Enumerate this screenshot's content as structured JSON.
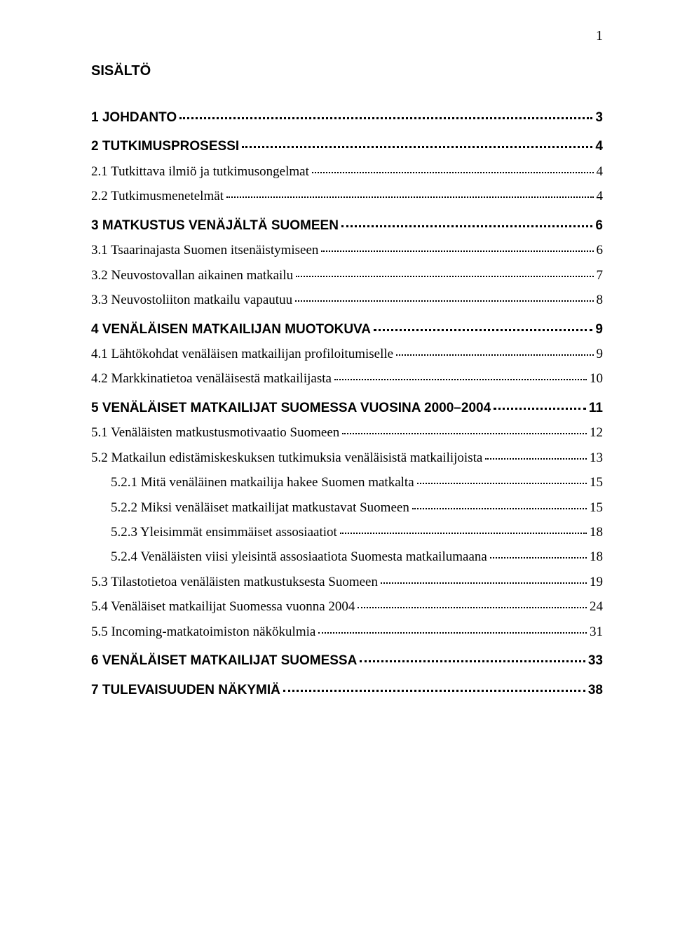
{
  "page_number": "1",
  "title": "SISÄLTÖ",
  "toc": [
    {
      "level": 0,
      "text": "1 JOHDANTO",
      "page": "3"
    },
    {
      "level": 0,
      "text": "2 TUTKIMUSPROSESSI",
      "page": "4"
    },
    {
      "level": 1,
      "text": "2.1 Tutkittava ilmiö ja tutkimusongelmat",
      "page": "4"
    },
    {
      "level": 1,
      "text": "2.2 Tutkimusmenetelmät",
      "page": "4"
    },
    {
      "level": 0,
      "text": "3 MATKUSTUS VENÄJÄLTÄ SUOMEEN",
      "page": "6"
    },
    {
      "level": 1,
      "text": "3.1 Tsaarinajasta Suomen itsenäistymiseen",
      "page": "6"
    },
    {
      "level": 1,
      "text": "3.2 Neuvostovallan aikainen matkailu",
      "page": "7"
    },
    {
      "level": 1,
      "text": "3.3 Neuvostoliiton matkailu vapautuu",
      "page": "8"
    },
    {
      "level": 0,
      "text": "4 VENÄLÄISEN MATKAILIJAN MUOTOKUVA",
      "page": "9"
    },
    {
      "level": 1,
      "text": "4.1 Lähtökohdat venäläisen matkailijan profiloitumiselle",
      "page": "9"
    },
    {
      "level": 1,
      "text": "4.2 Markkinatietoa venäläisestä matkailijasta",
      "page": "10"
    },
    {
      "level": 0,
      "text": "5 VENÄLÄISET MATKAILIJAT SUOMESSA VUOSINA 2000–2004",
      "page": "11"
    },
    {
      "level": 1,
      "text": "5.1 Venäläisten matkustusmotivaatio Suomeen",
      "page": "12"
    },
    {
      "level": 1,
      "text": "5.2 Matkailun edistämiskeskuksen  tutkimuksia venäläisistä matkailijoista",
      "page": "13"
    },
    {
      "level": 2,
      "text": "5.2.1 Mitä venäläinen matkailija hakee Suomen matkalta",
      "page": "15"
    },
    {
      "level": 2,
      "text": "5.2.2 Miksi venäläiset matkailijat matkustavat Suomeen",
      "page": "15"
    },
    {
      "level": 2,
      "text": "5.2.3 Yleisimmät ensimmäiset assosiaatiot",
      "page": "18"
    },
    {
      "level": 2,
      "text": "5.2.4 Venäläisten viisi yleisintä assosiaatiota Suomesta matkailumaana",
      "page": "18"
    },
    {
      "level": 1,
      "text": "5.3 Tilastotietoa venäläisten matkustuksesta Suomeen",
      "page": "19"
    },
    {
      "level": 1,
      "text": "5.4 Venäläiset matkailijat Suomessa vuonna 2004",
      "page": "24"
    },
    {
      "level": 1,
      "text": "5.5 Incoming-matkatoimiston näkökulmia",
      "page": "31"
    },
    {
      "level": 0,
      "text": "6 VENÄLÄISET MATKAILIJAT SUOMESSA",
      "page": "33"
    },
    {
      "level": 0,
      "text": "7 TULEVAISUUDEN NÄKYMIÄ",
      "page": "38"
    }
  ]
}
